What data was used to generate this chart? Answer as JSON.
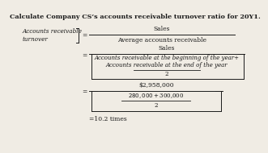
{
  "title": "Calculate Company CS’s accounts receivable turnover ratio for 20Y1.",
  "bg_color": "#f0ece4",
  "text_color": "#1a1a1a",
  "label_left1": "Accounts receivable",
  "label_left2": "turnover",
  "line1_num": "Sales",
  "line1_den": "Average accounts receivable",
  "line2_num": "Sales",
  "line2_den1": "Accounts receivable at the beginning of the year+",
  "line2_den2": "Accounts receivable at the end of the year",
  "line2_den3": "2",
  "line3_num": "$2,958,000",
  "line3_den1": "$280,000+$300,000",
  "line3_den2": "2",
  "result": "=10.2 times"
}
